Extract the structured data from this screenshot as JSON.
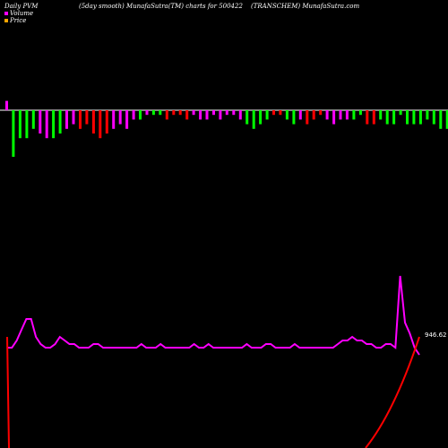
{
  "header": {
    "left": "Daily PVM",
    "center": "(5day smooth) MunafaSutra(TM) charts for 500422",
    "right": "(TRANSCHEM) MunafaSutra.com"
  },
  "legend": [
    {
      "label": "Volume",
      "color": "#ff00ff"
    },
    {
      "label": "Price",
      "color": "#ffa500"
    }
  ],
  "price_label": "946.62",
  "colors": {
    "background": "#000000",
    "up": "#00ff00",
    "down": "#ff0000",
    "neutral": "#ff00ff",
    "baseline": "#ffffff",
    "price_line": "#ff00ff",
    "red_line": "#ff0000"
  },
  "chart_data": [
    {
      "type": "bar",
      "name": "volume",
      "values": [
        2,
        -10,
        -6,
        -6,
        -4,
        -5,
        -6,
        -6,
        -5,
        -4,
        -3,
        -4,
        -3,
        -5,
        -6,
        -5,
        -4,
        -3,
        -4,
        -2,
        -2,
        -1,
        -1,
        -1,
        -2,
        -1,
        -1,
        -2,
        -1,
        -2,
        -2,
        -1,
        -2,
        -1,
        -1,
        -2,
        -3,
        -4,
        -3,
        -2,
        -1,
        -1,
        -2,
        -3,
        -2,
        -3,
        -2,
        -1,
        -2,
        -3,
        -2,
        -2,
        -2,
        -1,
        -3,
        -3,
        -2,
        -3,
        -3,
        -1,
        -3,
        -3,
        -3,
        -2,
        -3,
        -4,
        -4,
        -4,
        -5,
        -5,
        -5,
        -5,
        -5,
        -5,
        -5,
        2,
        -6,
        -6,
        -5,
        -6
      ],
      "colors": [
        "neutral",
        "up",
        "up",
        "up",
        "up",
        "neutral",
        "neutral",
        "up",
        "up",
        "neutral",
        "neutral",
        "down",
        "down",
        "down",
        "down",
        "down",
        "neutral",
        "neutral",
        "neutral",
        "neutral",
        "up",
        "neutral",
        "up",
        "up",
        "down",
        "down",
        "down",
        "down",
        "neutral",
        "neutral",
        "neutral",
        "neutral",
        "neutral",
        "neutral",
        "neutral",
        "neutral",
        "up",
        "up",
        "up",
        "up",
        "down",
        "down",
        "up",
        "up",
        "neutral",
        "down",
        "down",
        "down",
        "neutral",
        "neutral",
        "neutral",
        "neutral",
        "up",
        "up",
        "down",
        "down",
        "up",
        "up",
        "up",
        "up",
        "up",
        "up",
        "up",
        "up",
        "up",
        "up",
        "up",
        "up",
        "up",
        "up",
        "up",
        "up",
        "up",
        "up",
        "up",
        "neutral",
        "up",
        "up",
        "up",
        "up"
      ]
    },
    {
      "type": "line",
      "name": "price",
      "values": [
        28,
        28,
        30,
        33,
        36,
        36,
        31,
        29,
        28,
        28,
        29,
        31,
        30,
        29,
        29,
        28,
        28,
        28,
        29,
        29,
        28,
        28,
        28,
        28,
        28,
        28,
        28,
        28,
        29,
        28,
        28,
        28,
        29,
        28,
        28,
        28,
        28,
        28,
        28,
        29,
        28,
        28,
        29,
        28,
        28,
        28,
        28,
        28,
        28,
        28,
        29,
        28,
        28,
        28,
        29,
        29,
        28,
        28,
        28,
        28,
        29,
        28,
        28,
        28,
        28,
        28,
        28,
        28,
        28,
        29,
        30,
        30,
        31,
        30,
        30,
        29,
        29,
        28,
        28,
        29,
        29,
        28,
        48,
        35,
        32,
        28,
        26
      ]
    },
    {
      "type": "line",
      "name": "red",
      "values": [
        0,
        28,
        28,
        28,
        28,
        28,
        28,
        28,
        28,
        28,
        28,
        28,
        28,
        28,
        28,
        28,
        28,
        28,
        28,
        28,
        28,
        28,
        28,
        28,
        28,
        28,
        28,
        28,
        28,
        28,
        28,
        28,
        28,
        28,
        28,
        28,
        28,
        28,
        28,
        28,
        28,
        28,
        28,
        28,
        28,
        28,
        28,
        28,
        28,
        28,
        28,
        28,
        28,
        28,
        28,
        28,
        28,
        28,
        28,
        28,
        28,
        28,
        28,
        28,
        28,
        28,
        28,
        28,
        28,
        28,
        28,
        28,
        28,
        28,
        28,
        28,
        28,
        28,
        28,
        28,
        28,
        28,
        28,
        28,
        28,
        28,
        28
      ]
    }
  ]
}
